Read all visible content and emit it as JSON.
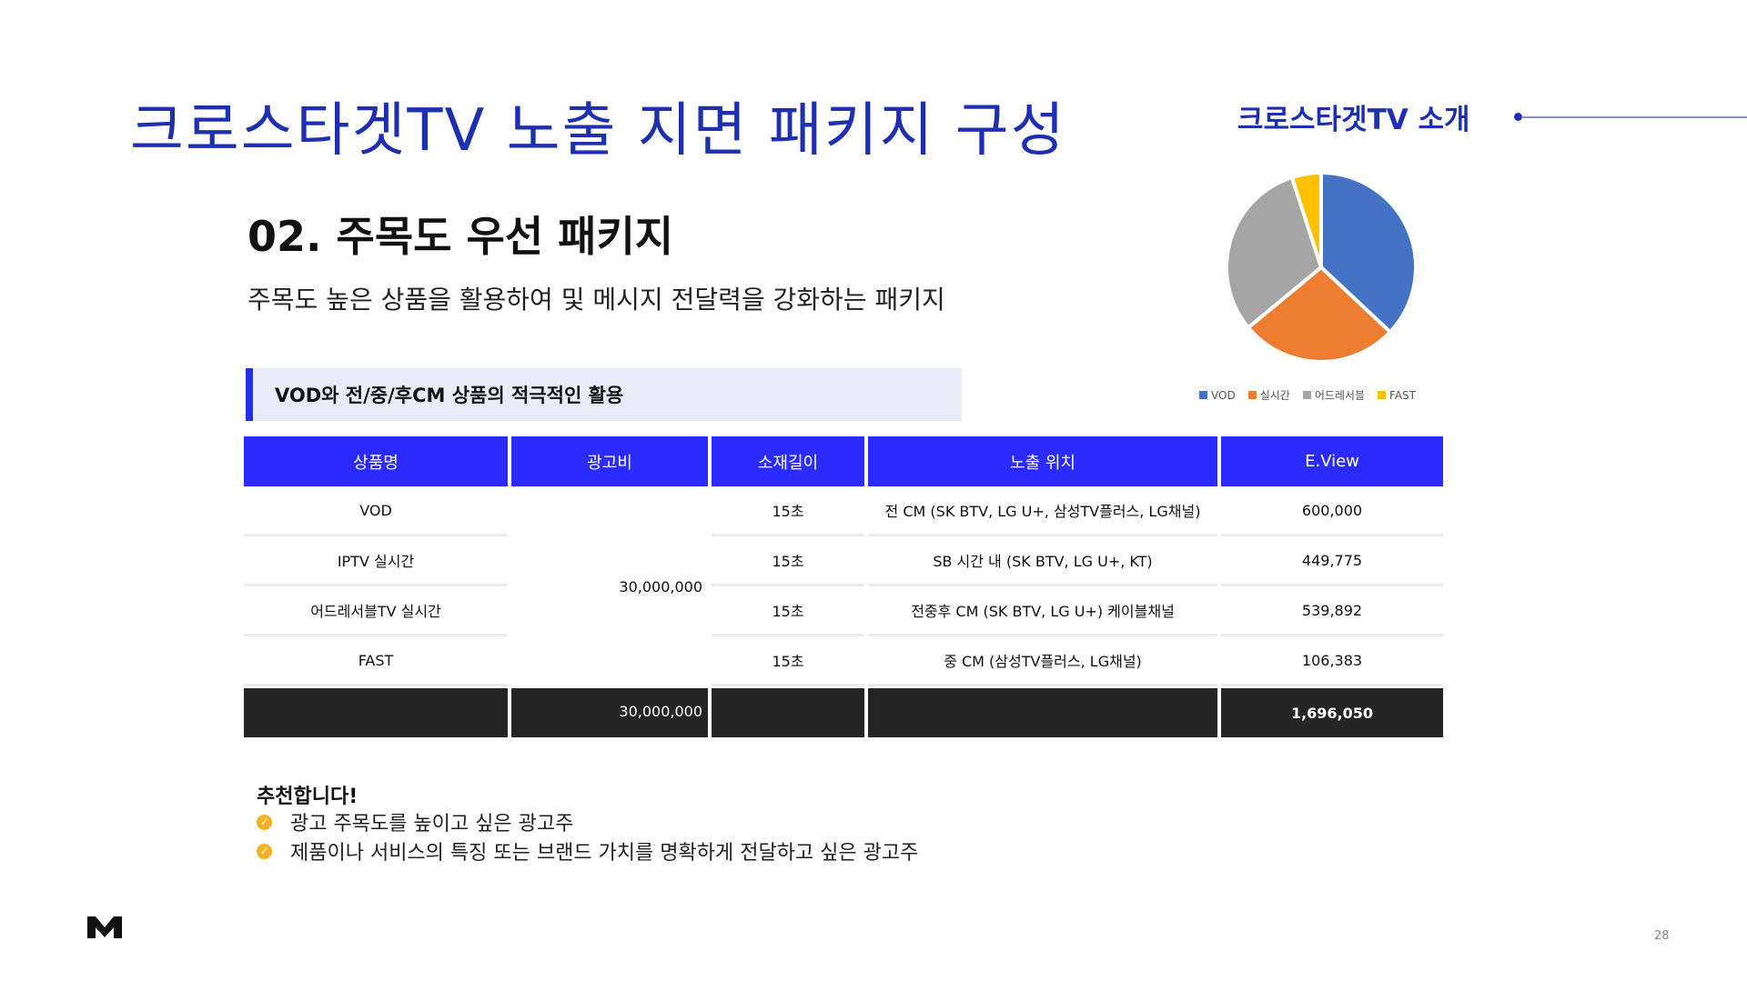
{
  "header": {
    "title": "크로스타겟TV 노출 지면 패키지 구성",
    "section_tag": "크로스타겟TV 소개"
  },
  "package": {
    "subtitle": "02. 주목도 우선 패키지",
    "description": "주목도 높은 상품을 활용하여 및 메시지 전달력을 강화하는 패키지",
    "banner": "VOD와 전/중/후CM 상품의 적극적인 활용"
  },
  "chart_data": {
    "type": "pie",
    "categories": [
      "VOD",
      "실시간",
      "어드레서블",
      "FAST"
    ],
    "values": [
      37,
      27,
      31,
      5
    ],
    "colors": [
      "#4472c4",
      "#ed7d31",
      "#a5a5a5",
      "#ffc000"
    ],
    "legend_position": "bottom"
  },
  "table": {
    "headers": [
      "상품명",
      "광고비",
      "소재길이",
      "노출 위치",
      "E.View"
    ],
    "rows": [
      {
        "product": "VOD",
        "length": "15초",
        "position": "전 CM (SK BTV, LG U+, 삼성TV플러스, LG채널)",
        "eview": "600,000"
      },
      {
        "product": "IPTV 실시간",
        "length": "15초",
        "position": "SB 시간 내 (SK BTV, LG U+, KT)",
        "eview": "449,775"
      },
      {
        "product": "어드레서블TV 실시간",
        "length": "15초",
        "position": "전중후 CM (SK BTV, LG U+) 케이블채널",
        "eview": "539,892"
      },
      {
        "product": "FAST",
        "length": "15초",
        "position": "중 CM (삼성TV플러스, LG채널)",
        "eview": "106,383"
      }
    ],
    "budget": "30,000,000",
    "total": {
      "budget": "30,000,000",
      "eview": "1,696,050"
    }
  },
  "recommend": {
    "title": "추천합니다!",
    "check_glyph": "✓",
    "items": [
      "광고 주목도를 높이고 싶은 광고주",
      "제품이나 서비스의 특징 또는 브랜드 가치를 명확하게 전달하고 싶은 광고주"
    ]
  },
  "footer": {
    "page_number": "28",
    "logo_icon": "brand-logo-icon"
  }
}
